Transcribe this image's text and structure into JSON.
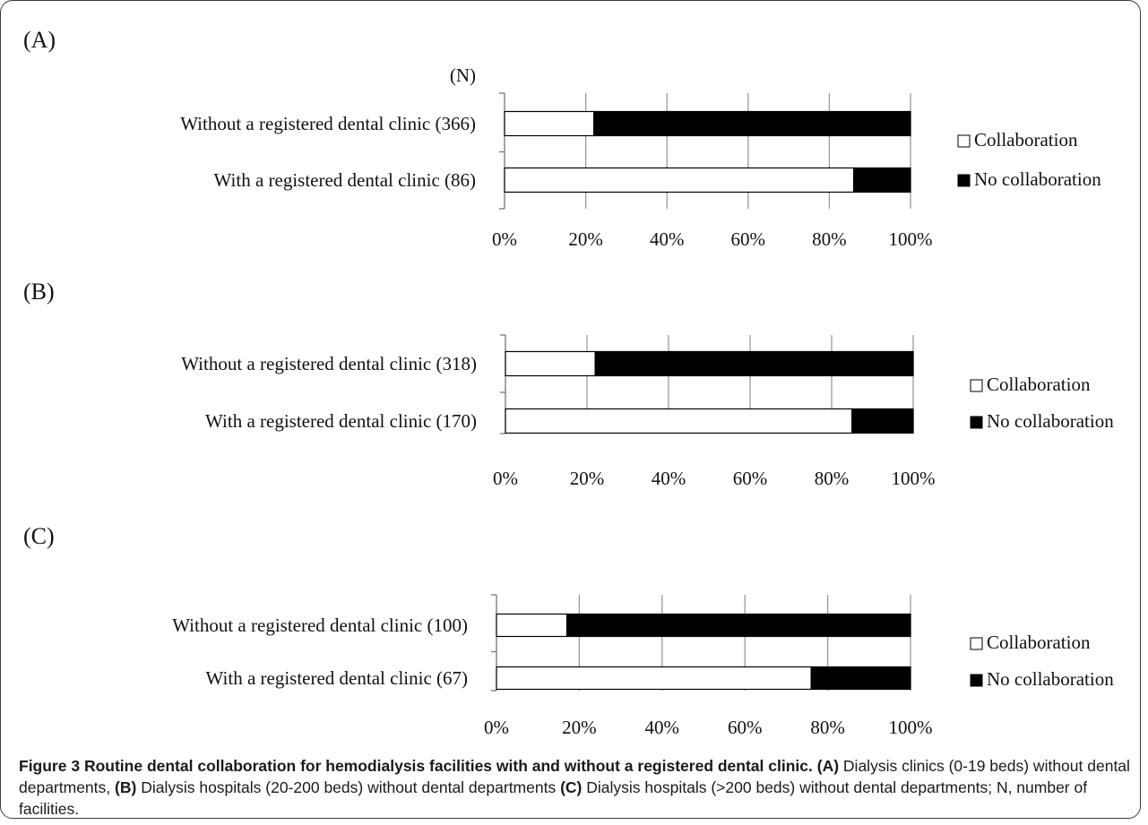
{
  "figure": {
    "axis_unit_label": "(N)",
    "caption": {
      "figure_label": "Figure 3",
      "title": "Routine dental collaboration for hemodialysis facilities with and without a registered dental clinic.",
      "parts": [
        {
          "label": "(A)",
          "text": "Dialysis clinics (0-19 beds) without dental departments,"
        },
        {
          "label": "(B)",
          "text": "Dialysis hospitals (20-200 beds) without dental departments"
        },
        {
          "label": "(C)",
          "text": "Dialysis hospitals (>200 beds) without dental departments; N, number of facilities."
        }
      ]
    }
  },
  "colors": {
    "collaboration": "#ffffff",
    "no_collaboration": "#000000",
    "grid": "#9a9a9a",
    "axis": "#777777"
  },
  "chart_data": [
    {
      "type": "bar",
      "orientation": "horizontal",
      "stacked": "percent",
      "panel_label": "(A)",
      "categories": [
        "Without a registered dental clinic (366)",
        "With a registered dental clinic (86)"
      ],
      "series": [
        {
          "name": "Collaboration",
          "values": [
            22,
            86
          ]
        },
        {
          "name": "No collaboration",
          "values": [
            78,
            14
          ]
        }
      ],
      "xlim": [
        0,
        100
      ],
      "xticks": [
        "0%",
        "20%",
        "40%",
        "60%",
        "80%",
        "100%"
      ],
      "grid": true,
      "legend": "right"
    },
    {
      "type": "bar",
      "orientation": "horizontal",
      "stacked": "percent",
      "panel_label": "(B)",
      "categories": [
        "Without a registered dental clinic (318)",
        "With a registered dental clinic (170)"
      ],
      "series": [
        {
          "name": "Collaboration",
          "values": [
            22,
            85
          ]
        },
        {
          "name": "No collaboration",
          "values": [
            78,
            15
          ]
        }
      ],
      "xlim": [
        0,
        100
      ],
      "xticks": [
        "0%",
        "20%",
        "40%",
        "60%",
        "80%",
        "100%"
      ],
      "grid": true,
      "legend": "right"
    },
    {
      "type": "bar",
      "orientation": "horizontal",
      "stacked": "percent",
      "panel_label": "(C)",
      "categories": [
        "Without a registered dental clinic (100)",
        "With a registered dental clinic (67)"
      ],
      "series": [
        {
          "name": "Collaboration",
          "values": [
            17,
            76
          ]
        },
        {
          "name": "No collaboration",
          "values": [
            83,
            24
          ]
        }
      ],
      "xlim": [
        0,
        100
      ],
      "xticks": [
        "0%",
        "20%",
        "40%",
        "60%",
        "80%",
        "100%"
      ],
      "grid": true,
      "legend": "right"
    }
  ]
}
